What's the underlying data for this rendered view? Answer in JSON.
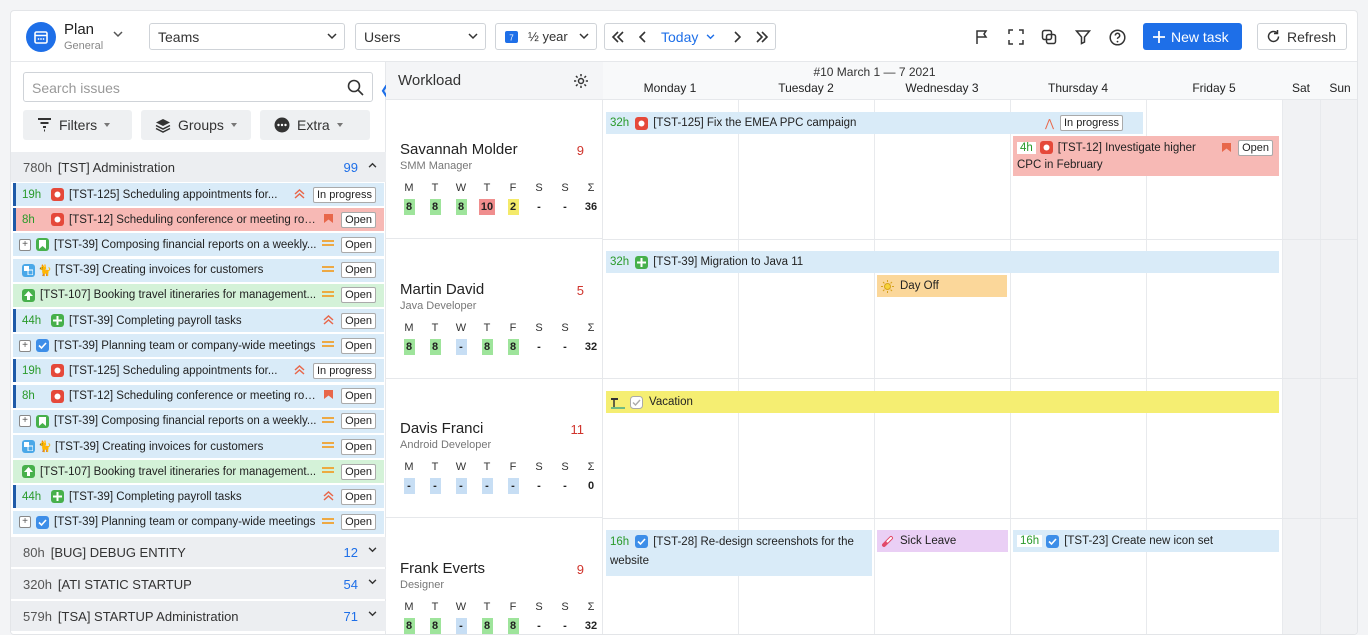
{
  "toolbar": {
    "plan_title": "Plan",
    "plan_sub": "General",
    "teams": "Teams",
    "users": "Users",
    "period": "½ year",
    "today": "Today",
    "new_task": "New task",
    "refresh": "Refresh",
    "colors": {
      "accent": "#1e6fe8"
    }
  },
  "left": {
    "search_placeholder": "Search issues",
    "filters": "Filters",
    "groups": "Groups",
    "extra": "Extra",
    "group_main": {
      "hours": "780h",
      "title": "[TST] Administration",
      "count": "99"
    },
    "issues": [
      {
        "hours": "19h",
        "title": "[TST-125] Scheduling appointments for...",
        "prio": "highest",
        "status": "In progress",
        "bg": "#d9ebf8",
        "bar": "#1e5aa8",
        "type": "bug"
      },
      {
        "hours": "8h",
        "title": "[TST-12] Scheduling conference or meeting rooms",
        "prio": "blocker",
        "status": "Open",
        "bg": "#f7b9b5",
        "bar": "#1e5aa8",
        "type": "bug"
      },
      {
        "hours": "",
        "title": "[TST-39] Composing financial reports on a weekly...",
        "prio": "medium",
        "status": "Open",
        "bg": "#d9ebf8",
        "bar": "",
        "type": "story",
        "plus": true
      },
      {
        "hours": "",
        "title": "[TST-39] Creating invoices for customers",
        "prio": "medium",
        "status": "Open",
        "bg": "#d9ebf8",
        "bar": "",
        "type": "subtask",
        "avatar": true
      },
      {
        "hours": "",
        "title": "[TST-107] Booking travel itineraries for management...",
        "prio": "medium",
        "status": "Open",
        "bg": "#d4f2d8",
        "bar": "",
        "type": "improvement"
      },
      {
        "hours": "44h",
        "title": "[TST-39] Completing payroll tasks",
        "prio": "highest",
        "status": "Open",
        "bg": "#d9ebf8",
        "bar": "#1e5aa8",
        "type": "newfeature"
      },
      {
        "hours": "",
        "title": "[TST-39] Planning team or company-wide meetings",
        "prio": "medium",
        "status": "Open",
        "bg": "#d9ebf8",
        "bar": "",
        "type": "task",
        "plus": true
      },
      {
        "hours": "19h",
        "title": "[TST-125] Scheduling appointments for...",
        "prio": "highest",
        "status": "In progress",
        "bg": "#d9ebf8",
        "bar": "#1e5aa8",
        "type": "bug"
      },
      {
        "hours": "8h",
        "title": "[TST-12] Scheduling conference or meeting rooms",
        "prio": "blocker",
        "status": "Open",
        "bg": "#d9ebf8",
        "bar": "#1e5aa8",
        "type": "bug"
      },
      {
        "hours": "",
        "title": "[TST-39] Composing financial reports on a weekly...",
        "prio": "medium",
        "status": "Open",
        "bg": "#d9ebf8",
        "bar": "",
        "type": "story",
        "plus": true
      },
      {
        "hours": "",
        "title": "[TST-39] Creating invoices for customers",
        "prio": "medium",
        "status": "Open",
        "bg": "#d9ebf8",
        "bar": "",
        "type": "subtask",
        "avatar": true
      },
      {
        "hours": "",
        "title": "[TST-107] Booking travel itineraries for management...",
        "prio": "medium",
        "status": "Open",
        "bg": "#d4f2d8",
        "bar": "",
        "type": "improvement"
      },
      {
        "hours": "44h",
        "title": "[TST-39] Completing payroll tasks",
        "prio": "highest",
        "status": "Open",
        "bg": "#d9ebf8",
        "bar": "#1e5aa8",
        "type": "newfeature"
      },
      {
        "hours": "",
        "title": "[TST-39] Planning team or company-wide meetings",
        "prio": "medium",
        "status": "Open",
        "bg": "#d9ebf8",
        "bar": "",
        "type": "task",
        "plus": true
      }
    ],
    "groups_collapsed": [
      {
        "hours": "80h",
        "title": "[BUG] DEBUG ENTITY",
        "count": "12"
      },
      {
        "hours": "320h",
        "title": "[ATI STATIC STARTUP",
        "count": "54"
      },
      {
        "hours": "579h",
        "title": "[TSA] STARTUP Administration",
        "count": "71"
      }
    ]
  },
  "workload": {
    "title": "Workload",
    "day_letters": [
      "M",
      "T",
      "W",
      "T",
      "F",
      "S",
      "S",
      "Σ"
    ],
    "people": [
      {
        "name": "Savannah Molder",
        "role": "SMM Manager",
        "count": "9",
        "vals": [
          [
            "8",
            "g"
          ],
          [
            "8",
            "g"
          ],
          [
            "8",
            "g"
          ],
          [
            "10",
            "r"
          ],
          [
            "2",
            "y"
          ],
          [
            "-",
            "n"
          ],
          [
            "-",
            "n"
          ],
          [
            "36",
            "n"
          ]
        ]
      },
      {
        "name": "Martin David",
        "role": "Java Developer",
        "count": "5",
        "vals": [
          [
            "8",
            "g"
          ],
          [
            "8",
            "g"
          ],
          [
            "-",
            "b"
          ],
          [
            "8",
            "g"
          ],
          [
            "8",
            "g"
          ],
          [
            "-",
            "n"
          ],
          [
            "-",
            "n"
          ],
          [
            "32",
            "n"
          ]
        ]
      },
      {
        "name": "Davis Franci",
        "role": "Android Developer",
        "count": "11",
        "vals": [
          [
            "-",
            "b"
          ],
          [
            "-",
            "b"
          ],
          [
            "-",
            "b"
          ],
          [
            "-",
            "b"
          ],
          [
            "-",
            "b"
          ],
          [
            "-",
            "n"
          ],
          [
            "-",
            "n"
          ],
          [
            "0",
            "n"
          ]
        ]
      },
      {
        "name": "Frank Everts",
        "role": "Designer",
        "count": "9",
        "vals": [
          [
            "8",
            "g"
          ],
          [
            "8",
            "g"
          ],
          [
            "-",
            "b"
          ],
          [
            "8",
            "g"
          ],
          [
            "8",
            "g"
          ],
          [
            "-",
            "n"
          ],
          [
            "-",
            "n"
          ],
          [
            "32",
            "n"
          ]
        ]
      }
    ]
  },
  "calendar": {
    "week": "#10 March 1 — 7 2021",
    "days": [
      "Monday 1",
      "Tuesday 2",
      "Wednesday 3",
      "Thursday 4",
      "Friday 5",
      "Sat",
      "Sun"
    ],
    "events": {
      "e1": {
        "hours": "32h",
        "title": "[TST-125] Fix the EMEA PPC campaign",
        "status": "In progress"
      },
      "e2": {
        "hours": "4h",
        "title": "[TST-12] Investigate higher",
        "title2": "CPC in February",
        "status": "Open"
      },
      "e3": {
        "hours": "32h",
        "title": "[TST-39] Migration to Java 11"
      },
      "e4": {
        "title": "Day Off"
      },
      "e5": {
        "title": "Vacation"
      },
      "e6": {
        "hours": "16h",
        "title": "[TST-28] Re-design screenshots for the",
        "title2": "website"
      },
      "e7": {
        "title": "Sick Leave"
      },
      "e8": {
        "hours": "16h",
        "title": "[TST-23] Create new icon set"
      }
    }
  }
}
